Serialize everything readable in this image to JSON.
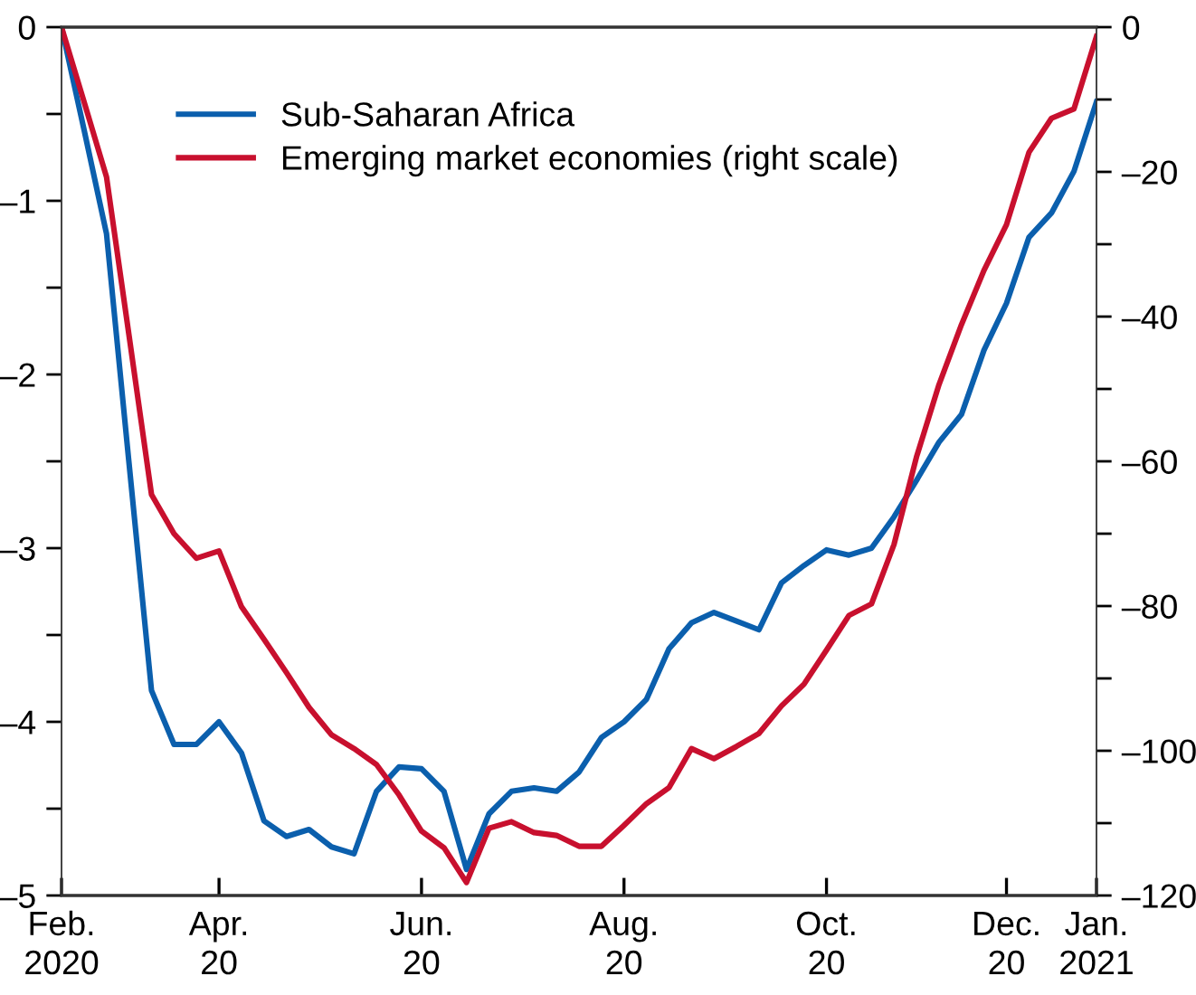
{
  "chart_data": {
    "type": "line",
    "categories": [
      "Feb.\n2020",
      null,
      null,
      null,
      null,
      null,
      null,
      "Apr.\n20",
      null,
      null,
      null,
      null,
      null,
      null,
      null,
      null,
      "Jun.\n20",
      null,
      null,
      null,
      null,
      null,
      null,
      null,
      null,
      "Aug.\n20",
      null,
      null,
      null,
      null,
      null,
      null,
      null,
      null,
      "Oct.\n20",
      null,
      null,
      null,
      null,
      null,
      null,
      null,
      "Dec.\n20",
      null,
      null,
      null,
      "Jan.\n2021"
    ],
    "ylim": [
      -5,
      0
    ],
    "yticks": [
      {
        "value": 0,
        "label": "0"
      },
      {
        "value": -0.5,
        "label": null
      },
      {
        "value": -1,
        "label": "–1"
      },
      {
        "value": -1.5,
        "label": null
      },
      {
        "value": -2,
        "label": "–2"
      },
      {
        "value": -2.5,
        "label": null
      },
      {
        "value": -3,
        "label": "–3"
      },
      {
        "value": -3.5,
        "label": null
      },
      {
        "value": -4,
        "label": "–4"
      },
      {
        "value": -4.5,
        "label": null
      },
      {
        "value": -5,
        "label": "–5"
      }
    ],
    "y2lim": [
      -120,
      0
    ],
    "y2ticks": [
      {
        "value": 0,
        "label": "0"
      },
      {
        "value": -10,
        "label": null
      },
      {
        "value": -20,
        "label": "–20"
      },
      {
        "value": -30,
        "label": null
      },
      {
        "value": -40,
        "label": "–40"
      },
      {
        "value": -50,
        "label": null
      },
      {
        "value": -60,
        "label": "–60"
      },
      {
        "value": -70,
        "label": null
      },
      {
        "value": -80,
        "label": "–80"
      },
      {
        "value": -90,
        "label": null
      },
      {
        "value": -100,
        "label": "–100"
      },
      {
        "value": -110,
        "label": null
      },
      {
        "value": -120,
        "label": "–120"
      }
    ],
    "legend": "top left",
    "grid": false,
    "marker": "none",
    "line_style": "solid",
    "series": [
      {
        "name": "Sub-Saharan Africa",
        "color": "#0b5fad",
        "values": [
          0,
          -0.59,
          -1.19,
          -2.51,
          -3.82,
          -4.13,
          -4.13,
          -4.0,
          -4.18,
          -4.57,
          -4.66,
          -4.62,
          -4.72,
          -4.76,
          -4.4,
          -4.26,
          -4.27,
          -4.4,
          -4.85,
          -4.53,
          -4.4,
          -4.38,
          -4.4,
          -4.29,
          -4.09,
          -4.0,
          -3.87,
          -3.58,
          -3.43,
          -3.37,
          -3.42,
          -3.47,
          -3.2,
          -3.1,
          -3.01,
          -3.04,
          -3.0,
          -2.82,
          -2.61,
          -2.39,
          -2.23,
          -1.86,
          -1.59,
          -1.21,
          -1.07,
          -0.83,
          -0.43
        ]
      },
      {
        "name": "Emerging market economies (right scale)",
        "color": "#c8102e",
        "axis": "y2",
        "values": [
          0,
          -10.3,
          -20.7,
          -42.6,
          -64.6,
          -70.0,
          -73.4,
          -72.4,
          -80.1,
          -84.6,
          -89.2,
          -94.0,
          -97.8,
          -99.7,
          -101.9,
          -106.1,
          -111.1,
          -113.4,
          -118.2,
          -110.7,
          -109.8,
          -111.3,
          -111.7,
          -113.2,
          -113.2,
          -110.3,
          -107.3,
          -105.1,
          -99.7,
          -101.1,
          -99.4,
          -97.6,
          -93.8,
          -90.8,
          -86.1,
          -81.3,
          -79.7,
          -71.5,
          -59.4,
          -49.4,
          -41.1,
          -33.6,
          -27.3,
          -17.3,
          -12.6,
          -11.3,
          -1.3
        ]
      }
    ]
  }
}
